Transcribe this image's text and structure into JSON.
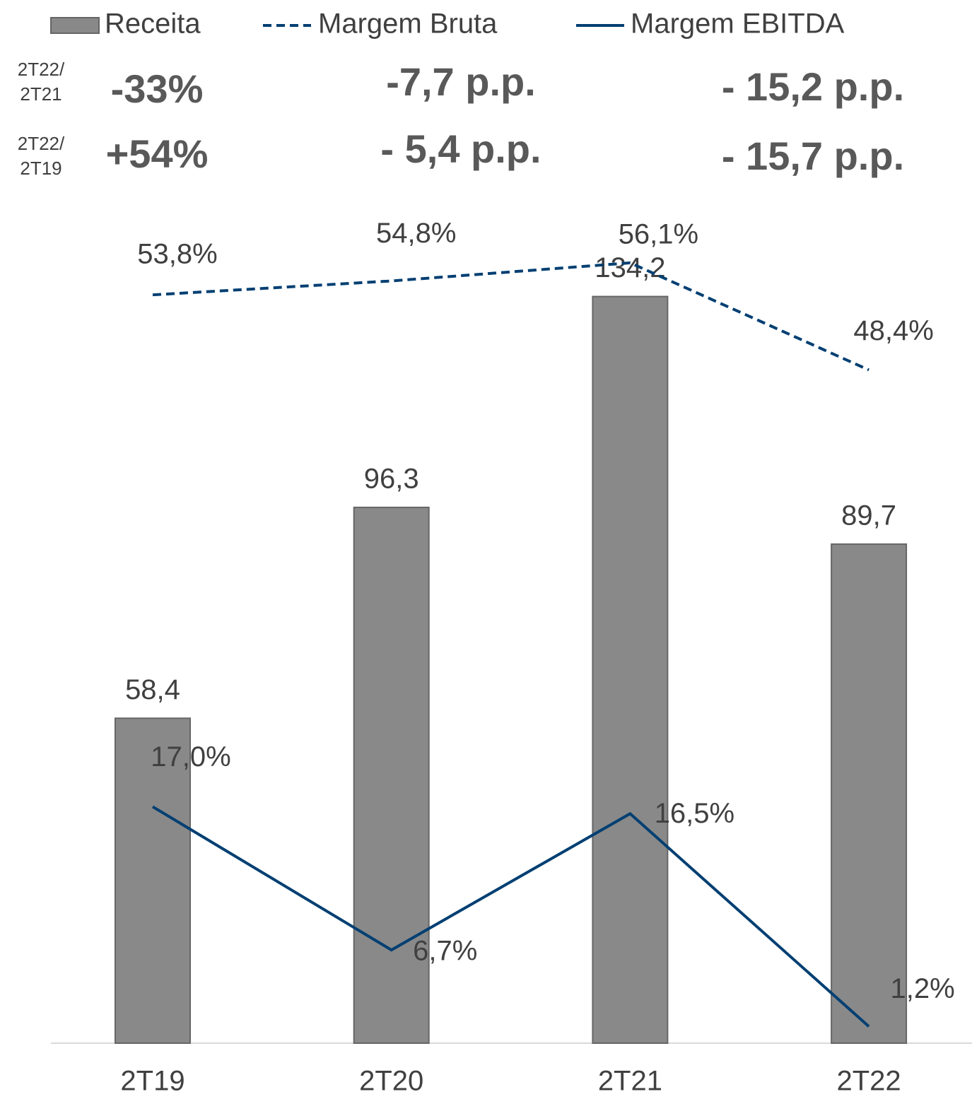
{
  "chart_data": {
    "type": "bar",
    "categories": [
      "2T19",
      "2T20",
      "2T21",
      "2T22"
    ],
    "series": [
      {
        "name": "Receita",
        "type": "bar",
        "color": "#898989",
        "values": [
          58.4,
          96.3,
          134.2,
          89.7
        ],
        "value_labels": [
          "58,4",
          "96,3",
          "134,2",
          "89,7"
        ]
      },
      {
        "name": "Margem Bruta",
        "type": "line",
        "dashed": true,
        "axis": "y2",
        "color": "#003f72",
        "values": [
          53.8,
          54.8,
          56.1,
          48.4
        ],
        "value_labels": [
          "53,8%",
          "54,8%",
          "56,1%",
          "48,4%"
        ]
      },
      {
        "name": "Margem EBITDA",
        "type": "line",
        "dashed": false,
        "axis": "y2",
        "color": "#003f72",
        "values": [
          17.0,
          6.7,
          16.5,
          1.2
        ],
        "value_labels": [
          "17,0%",
          "6,7%",
          "16,5%",
          "1,2%"
        ]
      }
    ],
    "ylim": [
      0,
      180
    ],
    "y2lim": [
      0,
      72
    ],
    "legend": "top",
    "comparisons": [
      {
        "period": [
          "2T22/",
          "2T21"
        ],
        "values": [
          "-33%",
          "-7,7 p.p.",
          "- 15,2 p.p."
        ]
      },
      {
        "period": [
          "2T22/",
          "2T19"
        ],
        "values": [
          "+54%",
          "- 5,4 p.p.",
          "- 15,7 p.p."
        ]
      }
    ]
  }
}
